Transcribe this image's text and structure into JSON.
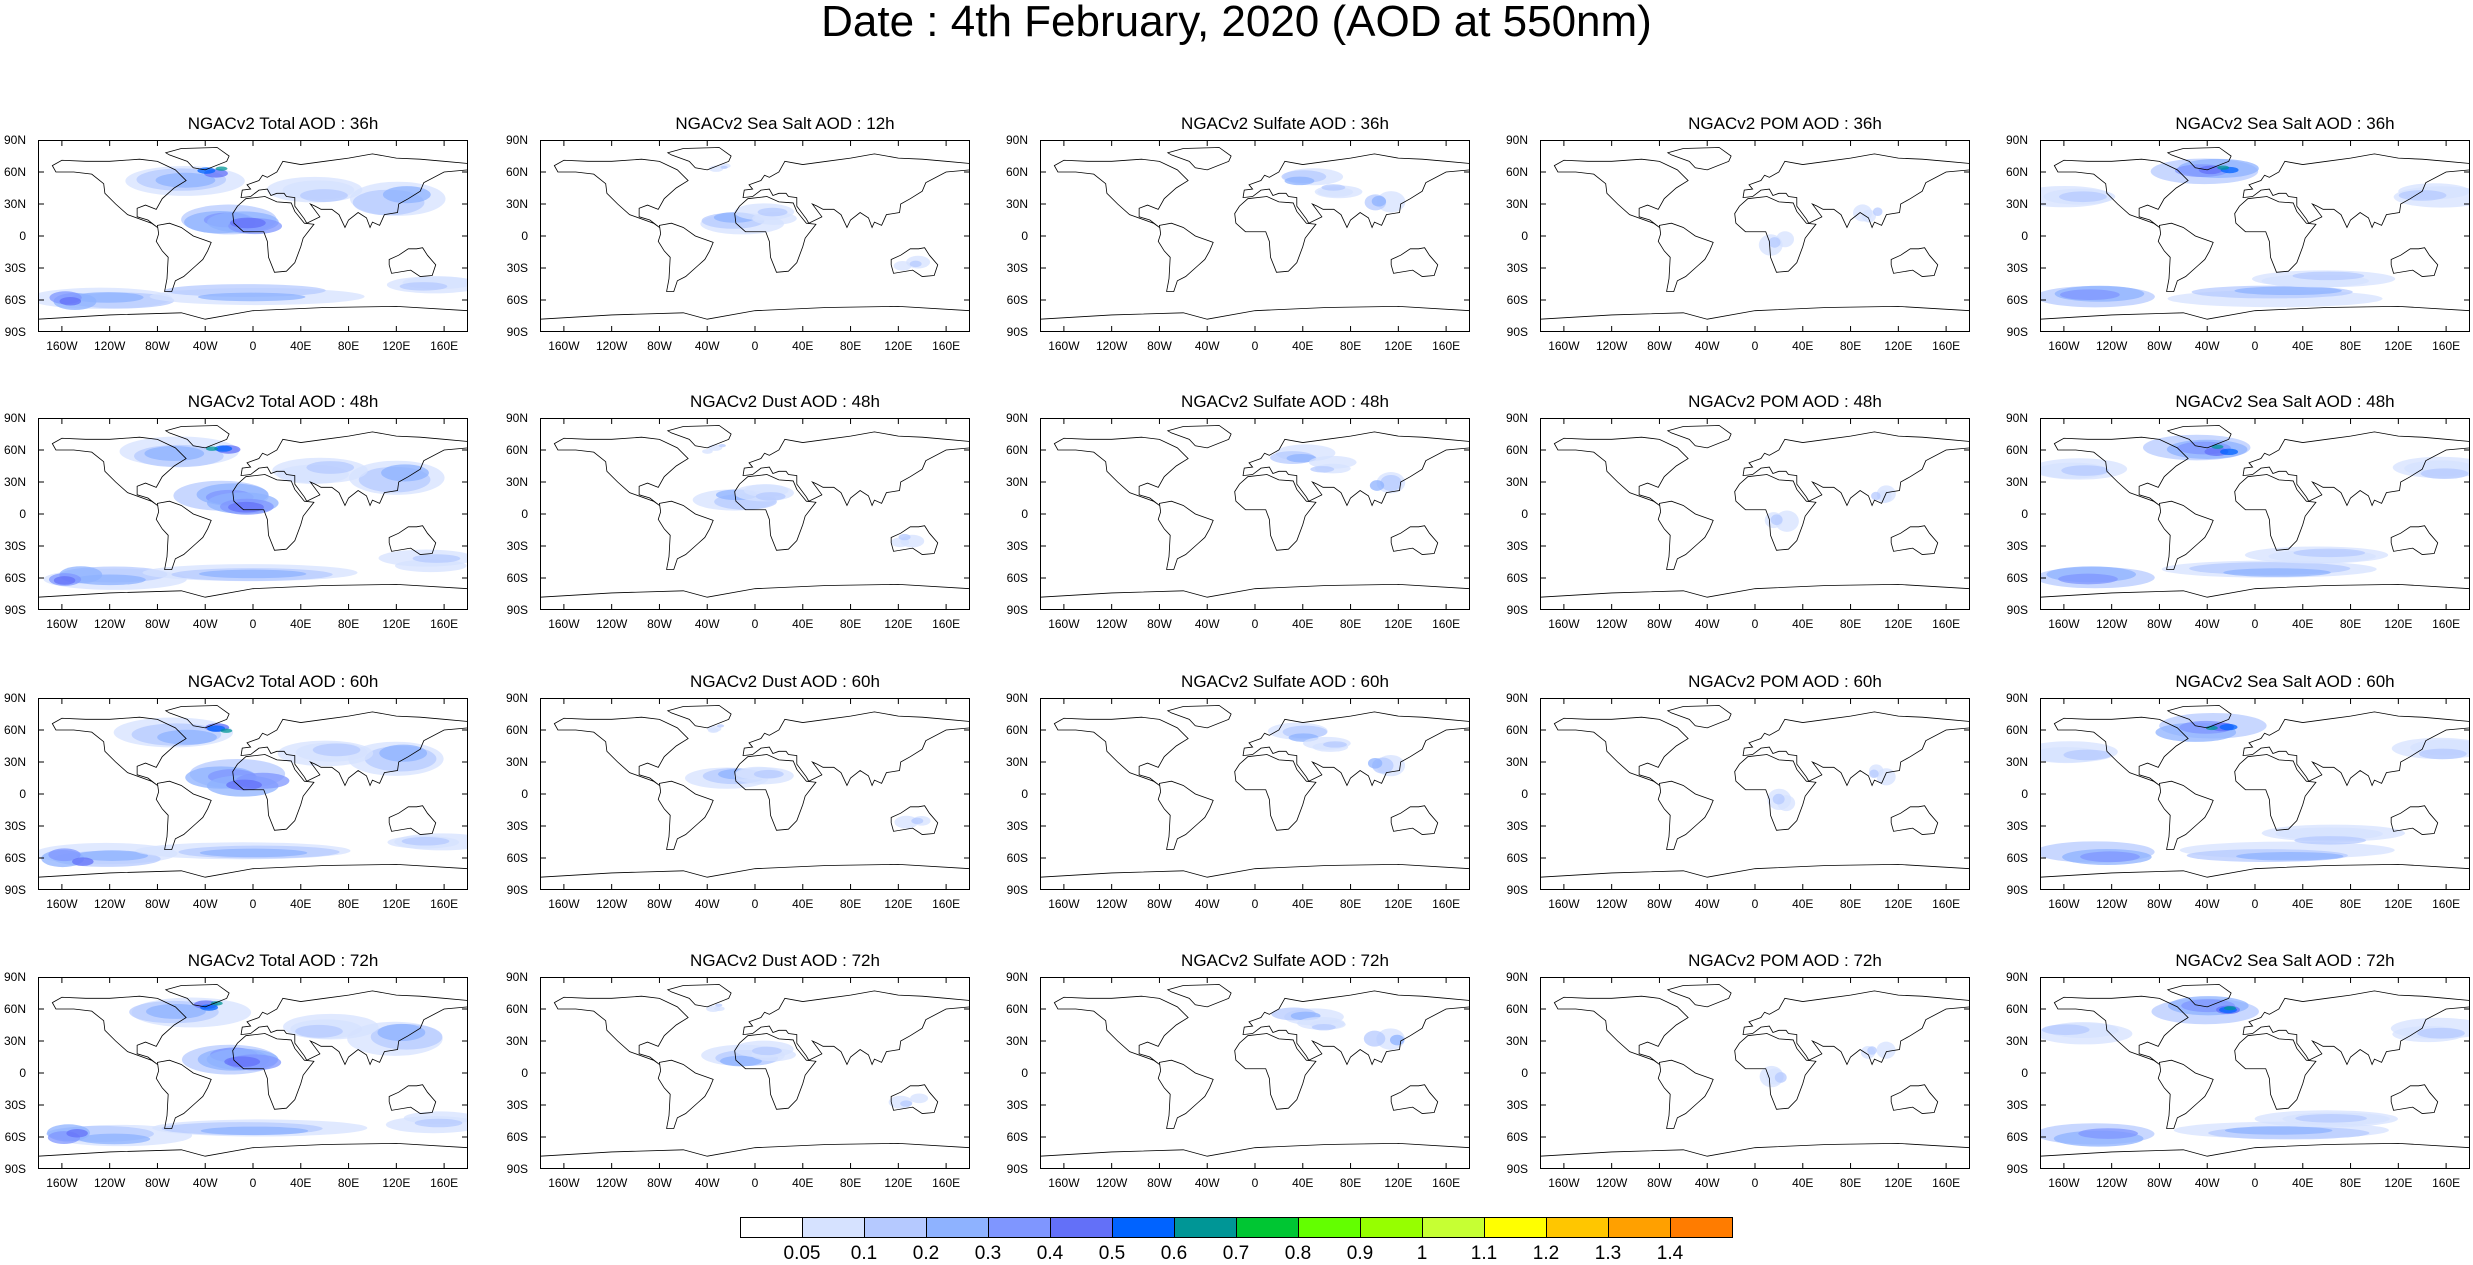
{
  "title": "Date : 4th February, 2020 (AOD at 550nm)",
  "panel_titles": [
    [
      "NGACv2 Total AOD : 36h",
      "NGACv2 Sea Salt  AOD : 12h",
      "NGACv2 Sulfate AOD : 36h",
      "NGACv2 POM AOD : 36h",
      "NGACv2 Sea Salt  AOD : 36h"
    ],
    [
      "NGACv2 Total AOD : 48h",
      "NGACv2 Dust AOD : 48h",
      "NGACv2 Sulfate AOD : 48h",
      "NGACv2 POM AOD : 48h",
      "NGACv2 Sea Salt  AOD : 48h"
    ],
    [
      "NGACv2 Total AOD : 60h",
      "NGACv2 Dust AOD : 60h",
      "NGACv2 Sulfate AOD : 60h",
      "NGACv2 POM AOD : 60h",
      "NGACv2 Sea Salt  AOD : 60h"
    ],
    [
      "NGACv2 Total AOD : 72h",
      "NGACv2 Dust AOD : 72h",
      "NGACv2 Sulfate AOD : 72h",
      "NGACv2 POM AOD : 72h",
      "NGACv2 Sea Salt  AOD : 72h"
    ]
  ],
  "lat_ticks": [
    "90N",
    "60N",
    "30N",
    "0",
    "30S",
    "60S",
    "90S"
  ],
  "lon_ticks": [
    "160W",
    "120W",
    "80W",
    "40W",
    "0",
    "40E",
    "80E",
    "120E",
    "160E"
  ],
  "colorbar": {
    "labels": [
      "0.05",
      "0.1",
      "0.2",
      "0.3",
      "0.4",
      "0.5",
      "0.6",
      "0.7",
      "0.8",
      "0.9",
      "1",
      "1.1",
      "1.2",
      "1.3",
      "1.4"
    ],
    "colors": [
      "#ffffff",
      "#d6e2ff",
      "#b5c9ff",
      "#8eb2ff",
      "#7f96ff",
      "#6370f8",
      "#0063ff",
      "#009696",
      "#00c633",
      "#63ff00",
      "#96ff00",
      "#c6ff33",
      "#ffff00",
      "#ffc600",
      "#ffa000",
      "#ff7c00",
      "#ff1900"
    ]
  }
}
